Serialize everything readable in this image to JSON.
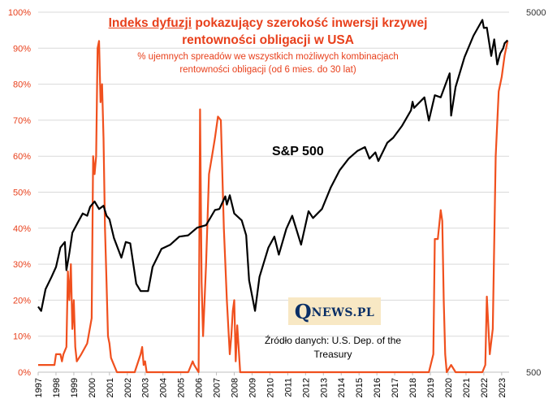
{
  "title": {
    "line1_emph": "Indeks dyfuzji",
    "line1_rest": " pokazujący szerokość inwersji krzywej",
    "line2": "rentowności obligacji w USA"
  },
  "subtitle": {
    "line1": "% ujemnych spreadów we wszystkich możliwych kombinacjach",
    "line2": "rentowności obligacji (od 6 mies. do 30 lat)"
  },
  "series_label": "S&P 500",
  "logo": {
    "q": "Q",
    "rest": "NEWS.PL"
  },
  "source": {
    "line1": "Źródło danych: U.S. Dep. of the",
    "line2": "Treasury"
  },
  "colors": {
    "diffusion": "#f0501e",
    "sp500": "#000000",
    "left_axis_text": "#e8401c",
    "grid": "#d9d9d9"
  },
  "chart_data": {
    "type": "line",
    "x_type": "date",
    "xlim": [
      "1997-01",
      "2023-06"
    ],
    "x_ticks": [
      "1997",
      "1998",
      "1999",
      "2000",
      "2001",
      "2002",
      "2003",
      "2004",
      "2005",
      "2006",
      "2007",
      "2008",
      "2009",
      "2010",
      "2011",
      "2012",
      "2013",
      "2014",
      "2015",
      "2016",
      "2017",
      "2018",
      "2019",
      "2020",
      "2021",
      "2022",
      "2023"
    ],
    "y_left": {
      "min": 0,
      "max": 100,
      "unit": "%",
      "ticks": [
        "0%",
        "10%",
        "20%",
        "30%",
        "40%",
        "50%",
        "60%",
        "70%",
        "80%",
        "90%",
        "100%"
      ]
    },
    "y_right": {
      "scale": "log",
      "min": 500,
      "max": 5000,
      "ticks": [
        "500",
        "5000"
      ]
    },
    "grid": "horizontal",
    "series": [
      {
        "axis": "left",
        "color": "#f0501e",
        "points": [
          [
            "1997-01",
            2
          ],
          [
            "1997-12",
            2
          ],
          [
            "1998-01",
            5
          ],
          [
            "1998-04",
            5
          ],
          [
            "1998-05",
            3
          ],
          [
            "1998-06",
            5
          ],
          [
            "1998-08",
            7
          ],
          [
            "1998-09",
            28
          ],
          [
            "1998-10",
            20
          ],
          [
            "1998-11",
            30
          ],
          [
            "1998-12",
            12
          ],
          [
            "1999-01",
            20
          ],
          [
            "1999-02",
            7
          ],
          [
            "1999-03",
            3
          ],
          [
            "1999-06",
            5
          ],
          [
            "1999-10",
            8
          ],
          [
            "2000-01",
            15
          ],
          [
            "2000-02",
            60
          ],
          [
            "2000-03",
            55
          ],
          [
            "2000-04",
            60
          ],
          [
            "2000-05",
            90
          ],
          [
            "2000-06",
            92
          ],
          [
            "2000-07",
            75
          ],
          [
            "2000-08",
            80
          ],
          [
            "2000-09",
            65
          ],
          [
            "2000-10",
            40
          ],
          [
            "2000-11",
            25
          ],
          [
            "2000-12",
            10
          ],
          [
            "2001-01",
            8
          ],
          [
            "2001-02",
            4
          ],
          [
            "2001-04",
            2
          ],
          [
            "2001-06",
            0
          ],
          [
            "2002-01",
            0
          ],
          [
            "2002-06",
            0
          ],
          [
            "2002-10",
            5
          ],
          [
            "2002-11",
            7
          ],
          [
            "2002-12",
            2
          ],
          [
            "2003-01",
            3
          ],
          [
            "2003-02",
            0
          ],
          [
            "2005-06",
            0
          ],
          [
            "2005-09",
            3
          ],
          [
            "2005-10",
            2
          ],
          [
            "2006-01",
            0
          ],
          [
            "2006-02",
            73
          ],
          [
            "2006-03",
            25
          ],
          [
            "2006-04",
            10
          ],
          [
            "2006-06",
            30
          ],
          [
            "2006-08",
            55
          ],
          [
            "2006-10",
            60
          ],
          [
            "2006-12",
            65
          ],
          [
            "2007-02",
            71
          ],
          [
            "2007-04",
            70
          ],
          [
            "2007-06",
            40
          ],
          [
            "2007-08",
            20
          ],
          [
            "2007-10",
            5
          ],
          [
            "2007-11",
            10
          ],
          [
            "2007-12",
            17
          ],
          [
            "2008-01",
            20
          ],
          [
            "2008-02",
            3
          ],
          [
            "2008-03",
            13
          ],
          [
            "2008-05",
            0
          ],
          [
            "2008-07",
            0
          ],
          [
            "2018-12",
            0
          ],
          [
            "2019-03",
            5
          ],
          [
            "2019-04",
            37
          ],
          [
            "2019-06",
            37
          ],
          [
            "2019-08",
            45
          ],
          [
            "2019-09",
            42
          ],
          [
            "2019-10",
            20
          ],
          [
            "2019-11",
            5
          ],
          [
            "2019-12",
            0
          ],
          [
            "2020-03",
            2
          ],
          [
            "2020-06",
            0
          ],
          [
            "2021-12",
            0
          ],
          [
            "2022-02",
            2
          ],
          [
            "2022-03",
            21
          ],
          [
            "2022-05",
            5
          ],
          [
            "2022-07",
            12
          ],
          [
            "2022-09",
            60
          ],
          [
            "2022-11",
            78
          ],
          [
            "2023-01",
            82
          ],
          [
            "2023-03",
            88
          ],
          [
            "2023-05",
            92
          ]
        ]
      },
      {
        "name": "S&P 500",
        "axis": "right",
        "color": "#000000",
        "points": [
          [
            "1997-01",
            760
          ],
          [
            "1997-03",
            740
          ],
          [
            "1997-06",
            850
          ],
          [
            "1997-10",
            920
          ],
          [
            "1998-01",
            980
          ],
          [
            "1998-04",
            1110
          ],
          [
            "1998-07",
            1150
          ],
          [
            "1998-08",
            960
          ],
          [
            "1998-10",
            1070
          ],
          [
            "1998-12",
            1220
          ],
          [
            "1999-04",
            1310
          ],
          [
            "1999-07",
            1380
          ],
          [
            "1999-10",
            1360
          ],
          [
            "1999-12",
            1440
          ],
          [
            "2000-03",
            1490
          ],
          [
            "2000-06",
            1420
          ],
          [
            "2000-09",
            1450
          ],
          [
            "2000-11",
            1360
          ],
          [
            "2001-01",
            1330
          ],
          [
            "2001-04",
            1180
          ],
          [
            "2001-09",
            1040
          ],
          [
            "2001-12",
            1150
          ],
          [
            "2002-03",
            1140
          ],
          [
            "2002-07",
            880
          ],
          [
            "2002-10",
            840
          ],
          [
            "2003-03",
            840
          ],
          [
            "2003-06",
            980
          ],
          [
            "2003-12",
            1100
          ],
          [
            "2004-06",
            1130
          ],
          [
            "2004-12",
            1190
          ],
          [
            "2005-06",
            1200
          ],
          [
            "2005-12",
            1260
          ],
          [
            "2006-06",
            1280
          ],
          [
            "2006-12",
            1410
          ],
          [
            "2007-03",
            1420
          ],
          [
            "2007-07",
            1540
          ],
          [
            "2007-08",
            1460
          ],
          [
            "2007-10",
            1550
          ],
          [
            "2008-01",
            1380
          ],
          [
            "2008-06",
            1320
          ],
          [
            "2008-09",
            1200
          ],
          [
            "2008-11",
            900
          ],
          [
            "2009-03",
            740
          ],
          [
            "2009-06",
            920
          ],
          [
            "2009-12",
            1110
          ],
          [
            "2010-04",
            1190
          ],
          [
            "2010-07",
            1060
          ],
          [
            "2010-12",
            1250
          ],
          [
            "2011-04",
            1360
          ],
          [
            "2011-10",
            1130
          ],
          [
            "2012-03",
            1400
          ],
          [
            "2012-06",
            1340
          ],
          [
            "2012-12",
            1420
          ],
          [
            "2013-06",
            1630
          ],
          [
            "2013-12",
            1820
          ],
          [
            "2014-06",
            1960
          ],
          [
            "2014-12",
            2060
          ],
          [
            "2015-05",
            2110
          ],
          [
            "2015-08",
            1960
          ],
          [
            "2015-12",
            2040
          ],
          [
            "2016-02",
            1930
          ],
          [
            "2016-08",
            2170
          ],
          [
            "2016-12",
            2240
          ],
          [
            "2017-06",
            2420
          ],
          [
            "2017-12",
            2670
          ],
          [
            "2018-01",
            2820
          ],
          [
            "2018-02",
            2710
          ],
          [
            "2018-09",
            2900
          ],
          [
            "2018-12",
            2500
          ],
          [
            "2019-04",
            2940
          ],
          [
            "2019-08",
            2900
          ],
          [
            "2019-12",
            3220
          ],
          [
            "2020-02",
            3380
          ],
          [
            "2020-03",
            2580
          ],
          [
            "2020-06",
            3100
          ],
          [
            "2020-12",
            3750
          ],
          [
            "2021-06",
            4300
          ],
          [
            "2021-12",
            4760
          ],
          [
            "2022-01",
            4520
          ],
          [
            "2022-03",
            4530
          ],
          [
            "2022-06",
            3780
          ],
          [
            "2022-08",
            4200
          ],
          [
            "2022-10",
            3580
          ],
          [
            "2022-12",
            3840
          ],
          [
            "2023-02",
            3970
          ],
          [
            "2023-03",
            4100
          ],
          [
            "2023-05",
            4180
          ]
        ]
      }
    ]
  }
}
